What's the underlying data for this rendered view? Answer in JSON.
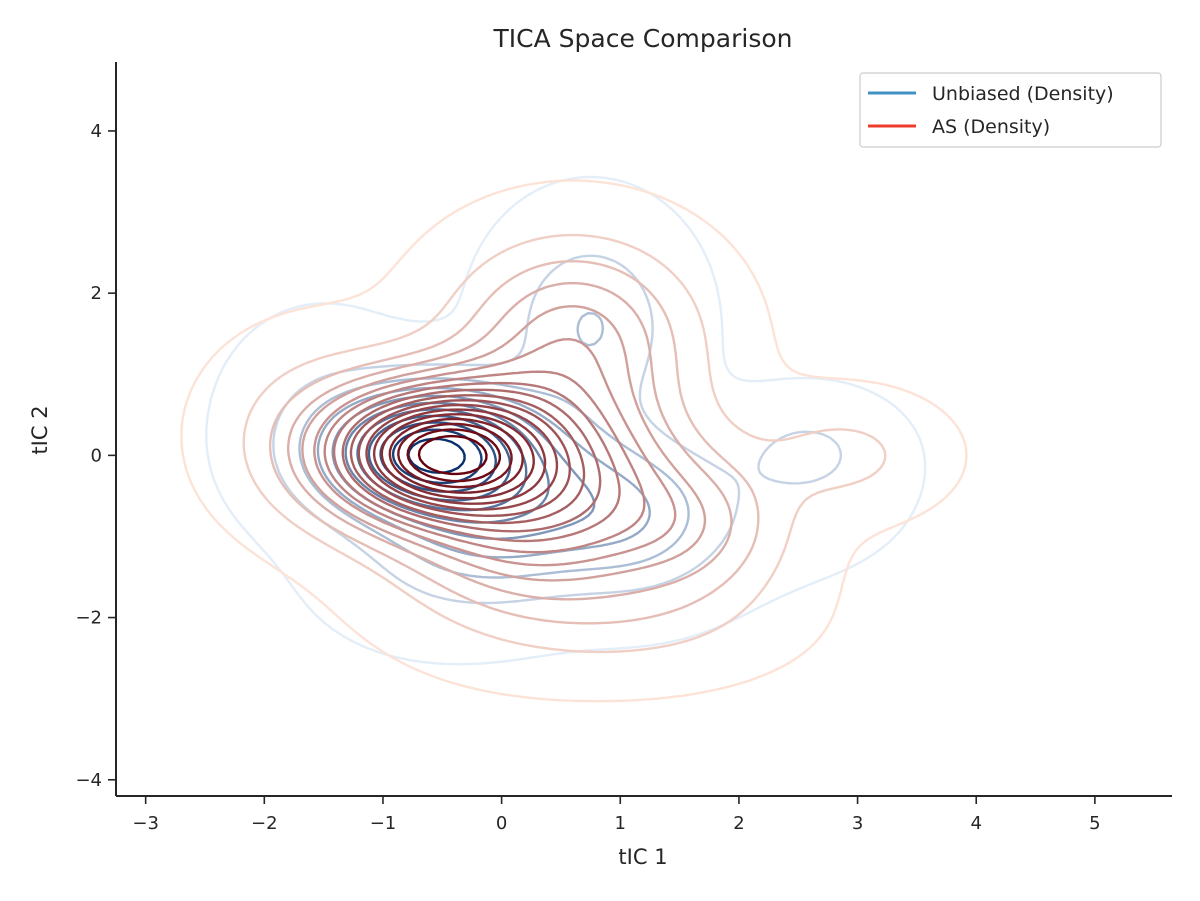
{
  "chart_data": {
    "type": "contour",
    "title": "TICA Space Comparison",
    "xlabel": "tIC 1",
    "ylabel": "tIC 2",
    "xlim": [
      -3.25,
      5.65
    ],
    "ylim": [
      -4.2,
      4.85
    ],
    "x_ticks": [
      -3,
      -2,
      -1,
      0,
      1,
      2,
      3,
      4,
      5
    ],
    "y_ticks": [
      -4,
      -2,
      0,
      2,
      4
    ],
    "x_tick_labels": [
      "−3",
      "−2",
      "−1",
      "0",
      "1",
      "2",
      "3",
      "4",
      "5"
    ],
    "y_tick_labels": [
      "−4",
      "−2",
      "0",
      "2",
      "4"
    ],
    "legend_position": "top-right",
    "grid": false,
    "series": [
      {
        "name": "Unbiased (Density)",
        "color": "#4292c6",
        "colormap": "Blues",
        "levels": 11,
        "peak": [
          -0.6,
          0.05
        ],
        "secondary_peak": [
          2.65,
          0.05
        ],
        "extent_x": [
          -2.4,
          3.8
        ],
        "extent_y": [
          -2.5,
          3.1
        ]
      },
      {
        "name": "AS (Density)",
        "color": "#ef3b2c",
        "colormap": "Reds",
        "levels": 18,
        "peak": [
          -0.55,
          0.05
        ],
        "extent_x": [
          -2.45,
          3.8
        ],
        "extent_y": [
          -2.9,
          3.0
        ]
      }
    ]
  }
}
